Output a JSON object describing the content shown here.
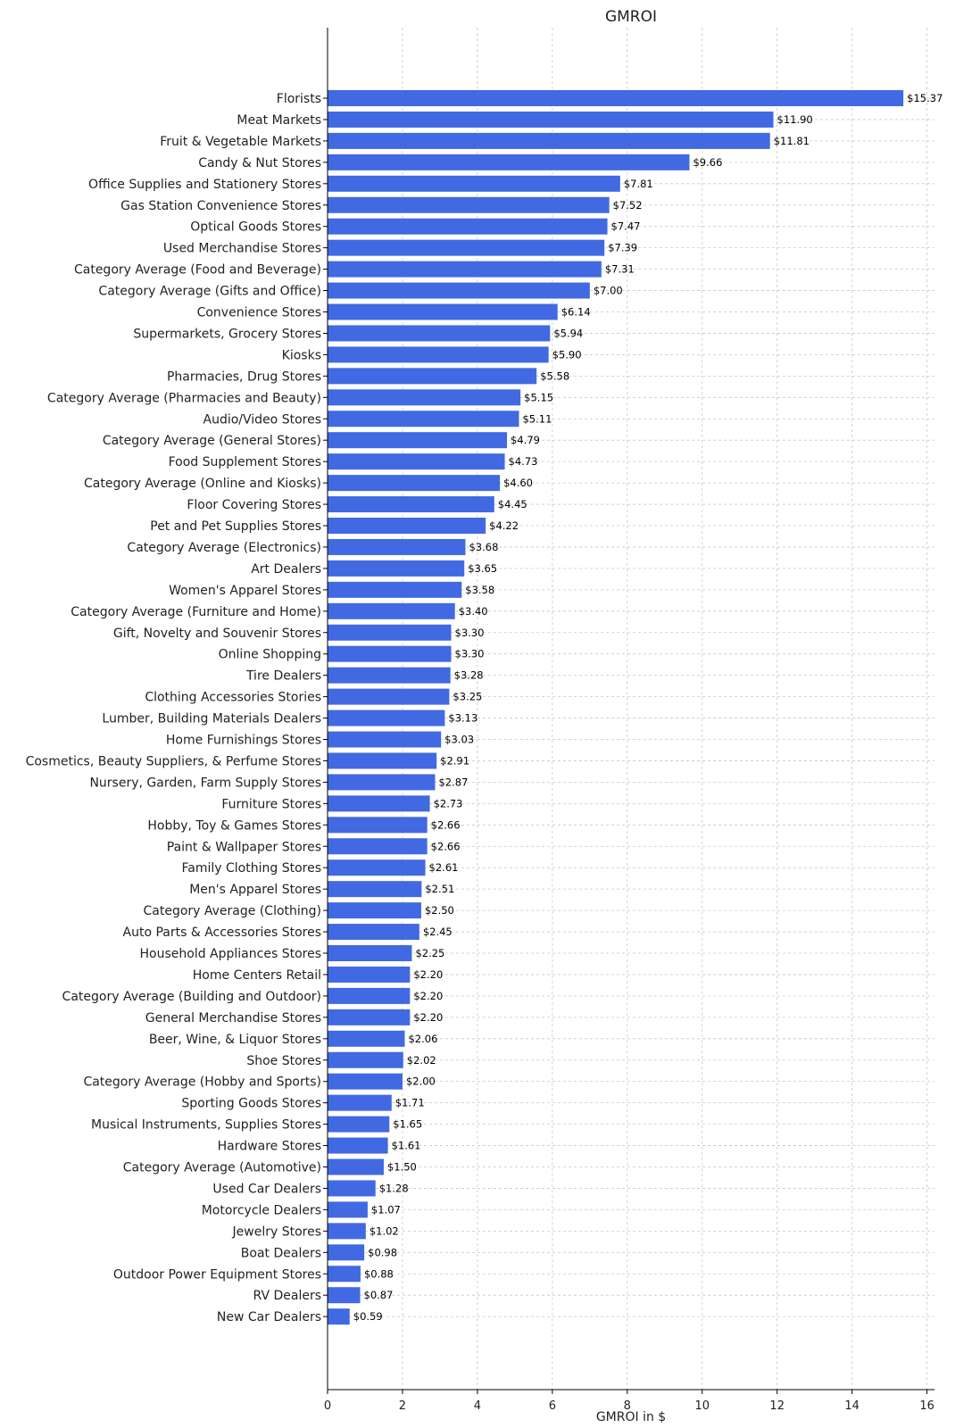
{
  "chart_data": {
    "type": "bar",
    "orientation": "horizontal",
    "title": "GMROI",
    "xlabel": "GMROI in $",
    "ylabel": "",
    "xlim": [
      0,
      16.2
    ],
    "xticks": [
      0,
      2,
      4,
      6,
      8,
      10,
      12,
      14,
      16
    ],
    "grid": true,
    "bar_color": "#4169e1",
    "value_label_prefix": "$",
    "categories": [
      "Florists",
      "Meat Markets",
      "Fruit & Vegetable Markets",
      "Candy & Nut Stores",
      "Office Supplies and Stationery Stores",
      "Gas Station Convenience Stores",
      "Optical Goods Stores",
      "Used Merchandise Stores",
      "Category Average (Food and Beverage)",
      "Category Average (Gifts and Office)",
      "Convenience Stores",
      "Supermarkets, Grocery Stores",
      "Kiosks",
      "Pharmacies, Drug Stores",
      "Category Average (Pharmacies and Beauty)",
      "Audio/Video Stores",
      "Category Average (General Stores)",
      "Food Supplement Stores",
      "Category Average (Online and Kiosks)",
      "Floor Covering Stores",
      "Pet and Pet Supplies Stores",
      "Category Average (Electronics)",
      "Art Dealers",
      "Women's Apparel Stores",
      "Category Average (Furniture and Home)",
      "Gift, Novelty and Souvenir Stores",
      "Online Shopping",
      "Tire Dealers",
      "Clothing Accessories Stories",
      "Lumber, Building Materials Dealers",
      "Home Furnishings Stores",
      "Cosmetics, Beauty Suppliers, & Perfume Stores",
      "Nursery, Garden, Farm Supply Stores",
      "Furniture Stores",
      "Hobby, Toy & Games Stores",
      "Paint & Wallpaper Stores",
      "Family Clothing Stores",
      "Men's Apparel Stores",
      "Category Average (Clothing)",
      "Auto Parts & Accessories Stores",
      "Household Appliances Stores",
      "Home Centers Retail",
      "Category Average (Building and Outdoor)",
      "General Merchandise Stores",
      "Beer, Wine, & Liquor Stores",
      "Shoe Stores",
      "Category Average (Hobby and Sports)",
      "Sporting Goods Stores",
      "Musical Instruments, Supplies Stores",
      "Hardware Stores",
      "Category Average (Automotive)",
      "Used Car Dealers",
      "Motorcycle Dealers",
      "Jewelry Stores",
      "Boat Dealers",
      "Outdoor Power Equipment Stores",
      "RV Dealers",
      "New Car Dealers"
    ],
    "values": [
      15.37,
      11.9,
      11.81,
      9.66,
      7.81,
      7.52,
      7.47,
      7.39,
      7.31,
      7.0,
      6.14,
      5.94,
      5.9,
      5.58,
      5.15,
      5.11,
      4.79,
      4.73,
      4.6,
      4.45,
      4.22,
      3.68,
      3.65,
      3.58,
      3.4,
      3.3,
      3.3,
      3.28,
      3.25,
      3.13,
      3.03,
      2.91,
      2.87,
      2.73,
      2.66,
      2.66,
      2.61,
      2.51,
      2.5,
      2.45,
      2.25,
      2.2,
      2.2,
      2.2,
      2.06,
      2.02,
      2.0,
      1.71,
      1.65,
      1.61,
      1.5,
      1.28,
      1.07,
      1.02,
      0.98,
      0.88,
      0.87,
      0.59
    ],
    "value_labels": [
      "$15.37",
      "$11.90",
      "$11.81",
      "$9.66",
      "$7.81",
      "$7.52",
      "$7.47",
      "$7.39",
      "$7.31",
      "$7.00",
      "$6.14",
      "$5.94",
      "$5.90",
      "$5.58",
      "$5.15",
      "$5.11",
      "$4.79",
      "$4.73",
      "$4.60",
      "$4.45",
      "$4.22",
      "$3.68",
      "$3.65",
      "$3.58",
      "$3.40",
      "$3.30",
      "$3.30",
      "$3.28",
      "$3.25",
      "$3.13",
      "$3.03",
      "$2.91",
      "$2.87",
      "$2.73",
      "$2.66",
      "$2.66",
      "$2.61",
      "$2.51",
      "$2.50",
      "$2.45",
      "$2.25",
      "$2.20",
      "$2.20",
      "$2.20",
      "$2.06",
      "$2.02",
      "$2.00",
      "$1.71",
      "$1.65",
      "$1.61",
      "$1.50",
      "$1.28",
      "$1.07",
      "$1.02",
      "$0.98",
      "$0.88",
      "$0.87",
      "$0.59"
    ]
  }
}
